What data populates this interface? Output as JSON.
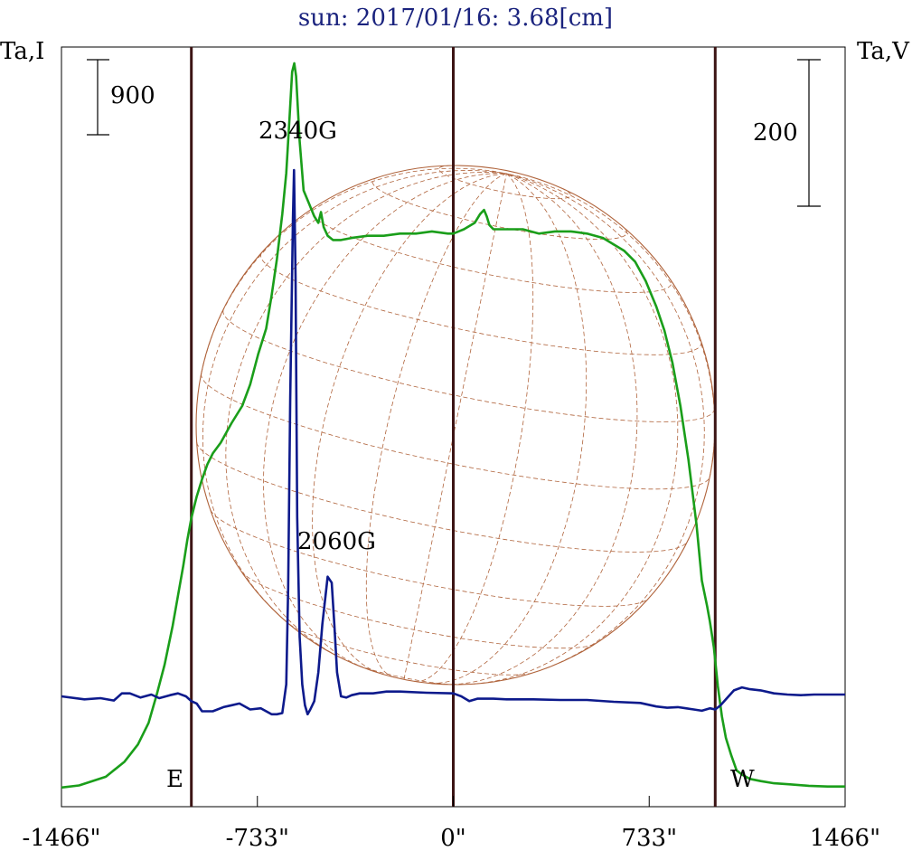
{
  "chart_data": {
    "type": "line",
    "title": "sun: 2017/01/16: 3.68[cm]",
    "left_axis_label": "Ta,I",
    "right_axis_label": "Ta,V",
    "x_ticks": [
      -1466,
      -733,
      0,
      733,
      1466
    ],
    "x_tick_labels": [
      "-1466\"",
      "-733\"",
      "0\"",
      "733\"",
      "1466\""
    ],
    "xlim": [
      -1466,
      1466
    ],
    "scale_bar_left": "900",
    "scale_bar_right": "200",
    "east_label": "E",
    "west_label": "W",
    "vertical_markers": [
      -980,
      0,
      980
    ],
    "annotations": [
      {
        "text": "2340G",
        "x": -595
      },
      {
        "text": "2060G",
        "x": -440
      }
    ],
    "series": [
      {
        "name": "",
        "axis": "left",
        "color": "#1a9e1a",
        "x": [
          -1466,
          -1400,
          -1300,
          -1230,
          -1180,
          -1140,
          -1110,
          -1080,
          -1050,
          -1030,
          -1010,
          -995,
          -980,
          -960,
          -940,
          -920,
          -900,
          -870,
          -830,
          -790,
          -760,
          -730,
          -700,
          -680,
          -660,
          -640,
          -625,
          -612,
          -603,
          -595,
          -588,
          -575,
          -560,
          -540,
          -520,
          -505,
          -495,
          -485,
          -470,
          -450,
          -420,
          -380,
          -320,
          -260,
          -200,
          -140,
          -80,
          -20,
          0,
          40,
          80,
          100,
          115,
          125,
          135,
          150,
          200,
          260,
          320,
          380,
          440,
          500,
          560,
          600,
          640,
          680,
          720,
          760,
          790,
          820,
          850,
          880,
          910,
          930,
          950,
          960,
          975,
          990,
          1005,
          1020,
          1040,
          1060,
          1080,
          1110,
          1150,
          1200,
          1260,
          1330,
          1400,
          1466
        ],
        "values": [
          30,
          40,
          80,
          150,
          230,
          330,
          460,
          600,
          780,
          920,
          1060,
          1180,
          1280,
          1380,
          1460,
          1530,
          1580,
          1630,
          1720,
          1800,
          1900,
          2040,
          2160,
          2310,
          2480,
          2690,
          2880,
          3150,
          3350,
          3390,
          3330,
          3030,
          2800,
          2740,
          2680,
          2650,
          2700,
          2630,
          2590,
          2570,
          2570,
          2580,
          2590,
          2590,
          2600,
          2600,
          2610,
          2600,
          2600,
          2620,
          2650,
          2690,
          2710,
          2680,
          2640,
          2620,
          2620,
          2620,
          2600,
          2610,
          2610,
          2600,
          2580,
          2550,
          2520,
          2470,
          2380,
          2260,
          2150,
          2000,
          1800,
          1550,
          1250,
          990,
          870,
          800,
          680,
          500,
          360,
          260,
          180,
          110,
          90,
          70,
          60,
          50,
          45,
          38,
          35,
          35
        ]
      },
      {
        "name": "",
        "axis": "right",
        "color": "#0d1a8c",
        "x": [
          -1466,
          -1380,
          -1320,
          -1270,
          -1240,
          -1210,
          -1170,
          -1130,
          -1100,
          -1060,
          -1030,
          -1000,
          -980,
          -960,
          -940,
          -900,
          -860,
          -800,
          -760,
          -720,
          -680,
          -660,
          -640,
          -625,
          -618,
          -610,
          -600,
          -596,
          -590,
          -584,
          -575,
          -565,
          -555,
          -545,
          -535,
          -520,
          -505,
          -490,
          -470,
          -455,
          -445,
          -435,
          -420,
          -400,
          -380,
          -350,
          -300,
          -250,
          -200,
          -100,
          0,
          30,
          60,
          90,
          120,
          150,
          200,
          300,
          400,
          500,
          600,
          700,
          760,
          800,
          840,
          870,
          900,
          930,
          960,
          980,
          1000,
          1020,
          1050,
          1080,
          1110,
          1150,
          1200,
          1250,
          1300,
          1350,
          1400,
          1466
        ],
        "values": [
          0,
          -5,
          -3,
          -7,
          5,
          5,
          -2,
          3,
          -3,
          2,
          5,
          0,
          -8,
          -12,
          -25,
          -25,
          -18,
          -12,
          -22,
          -20,
          -30,
          -30,
          -28,
          20,
          180,
          500,
          800,
          880,
          700,
          300,
          100,
          20,
          -15,
          -30,
          -22,
          -8,
          40,
          120,
          200,
          190,
          120,
          40,
          0,
          -2,
          2,
          5,
          5,
          8,
          8,
          6,
          5,
          0,
          -8,
          -4,
          -4,
          -4,
          -5,
          -5,
          -6,
          -6,
          -9,
          -11,
          -17,
          -19,
          -18,
          -20,
          -22,
          -24,
          -20,
          -22,
          -15,
          -5,
          10,
          15,
          12,
          10,
          5,
          3,
          2,
          3,
          3,
          3
        ]
      }
    ]
  }
}
